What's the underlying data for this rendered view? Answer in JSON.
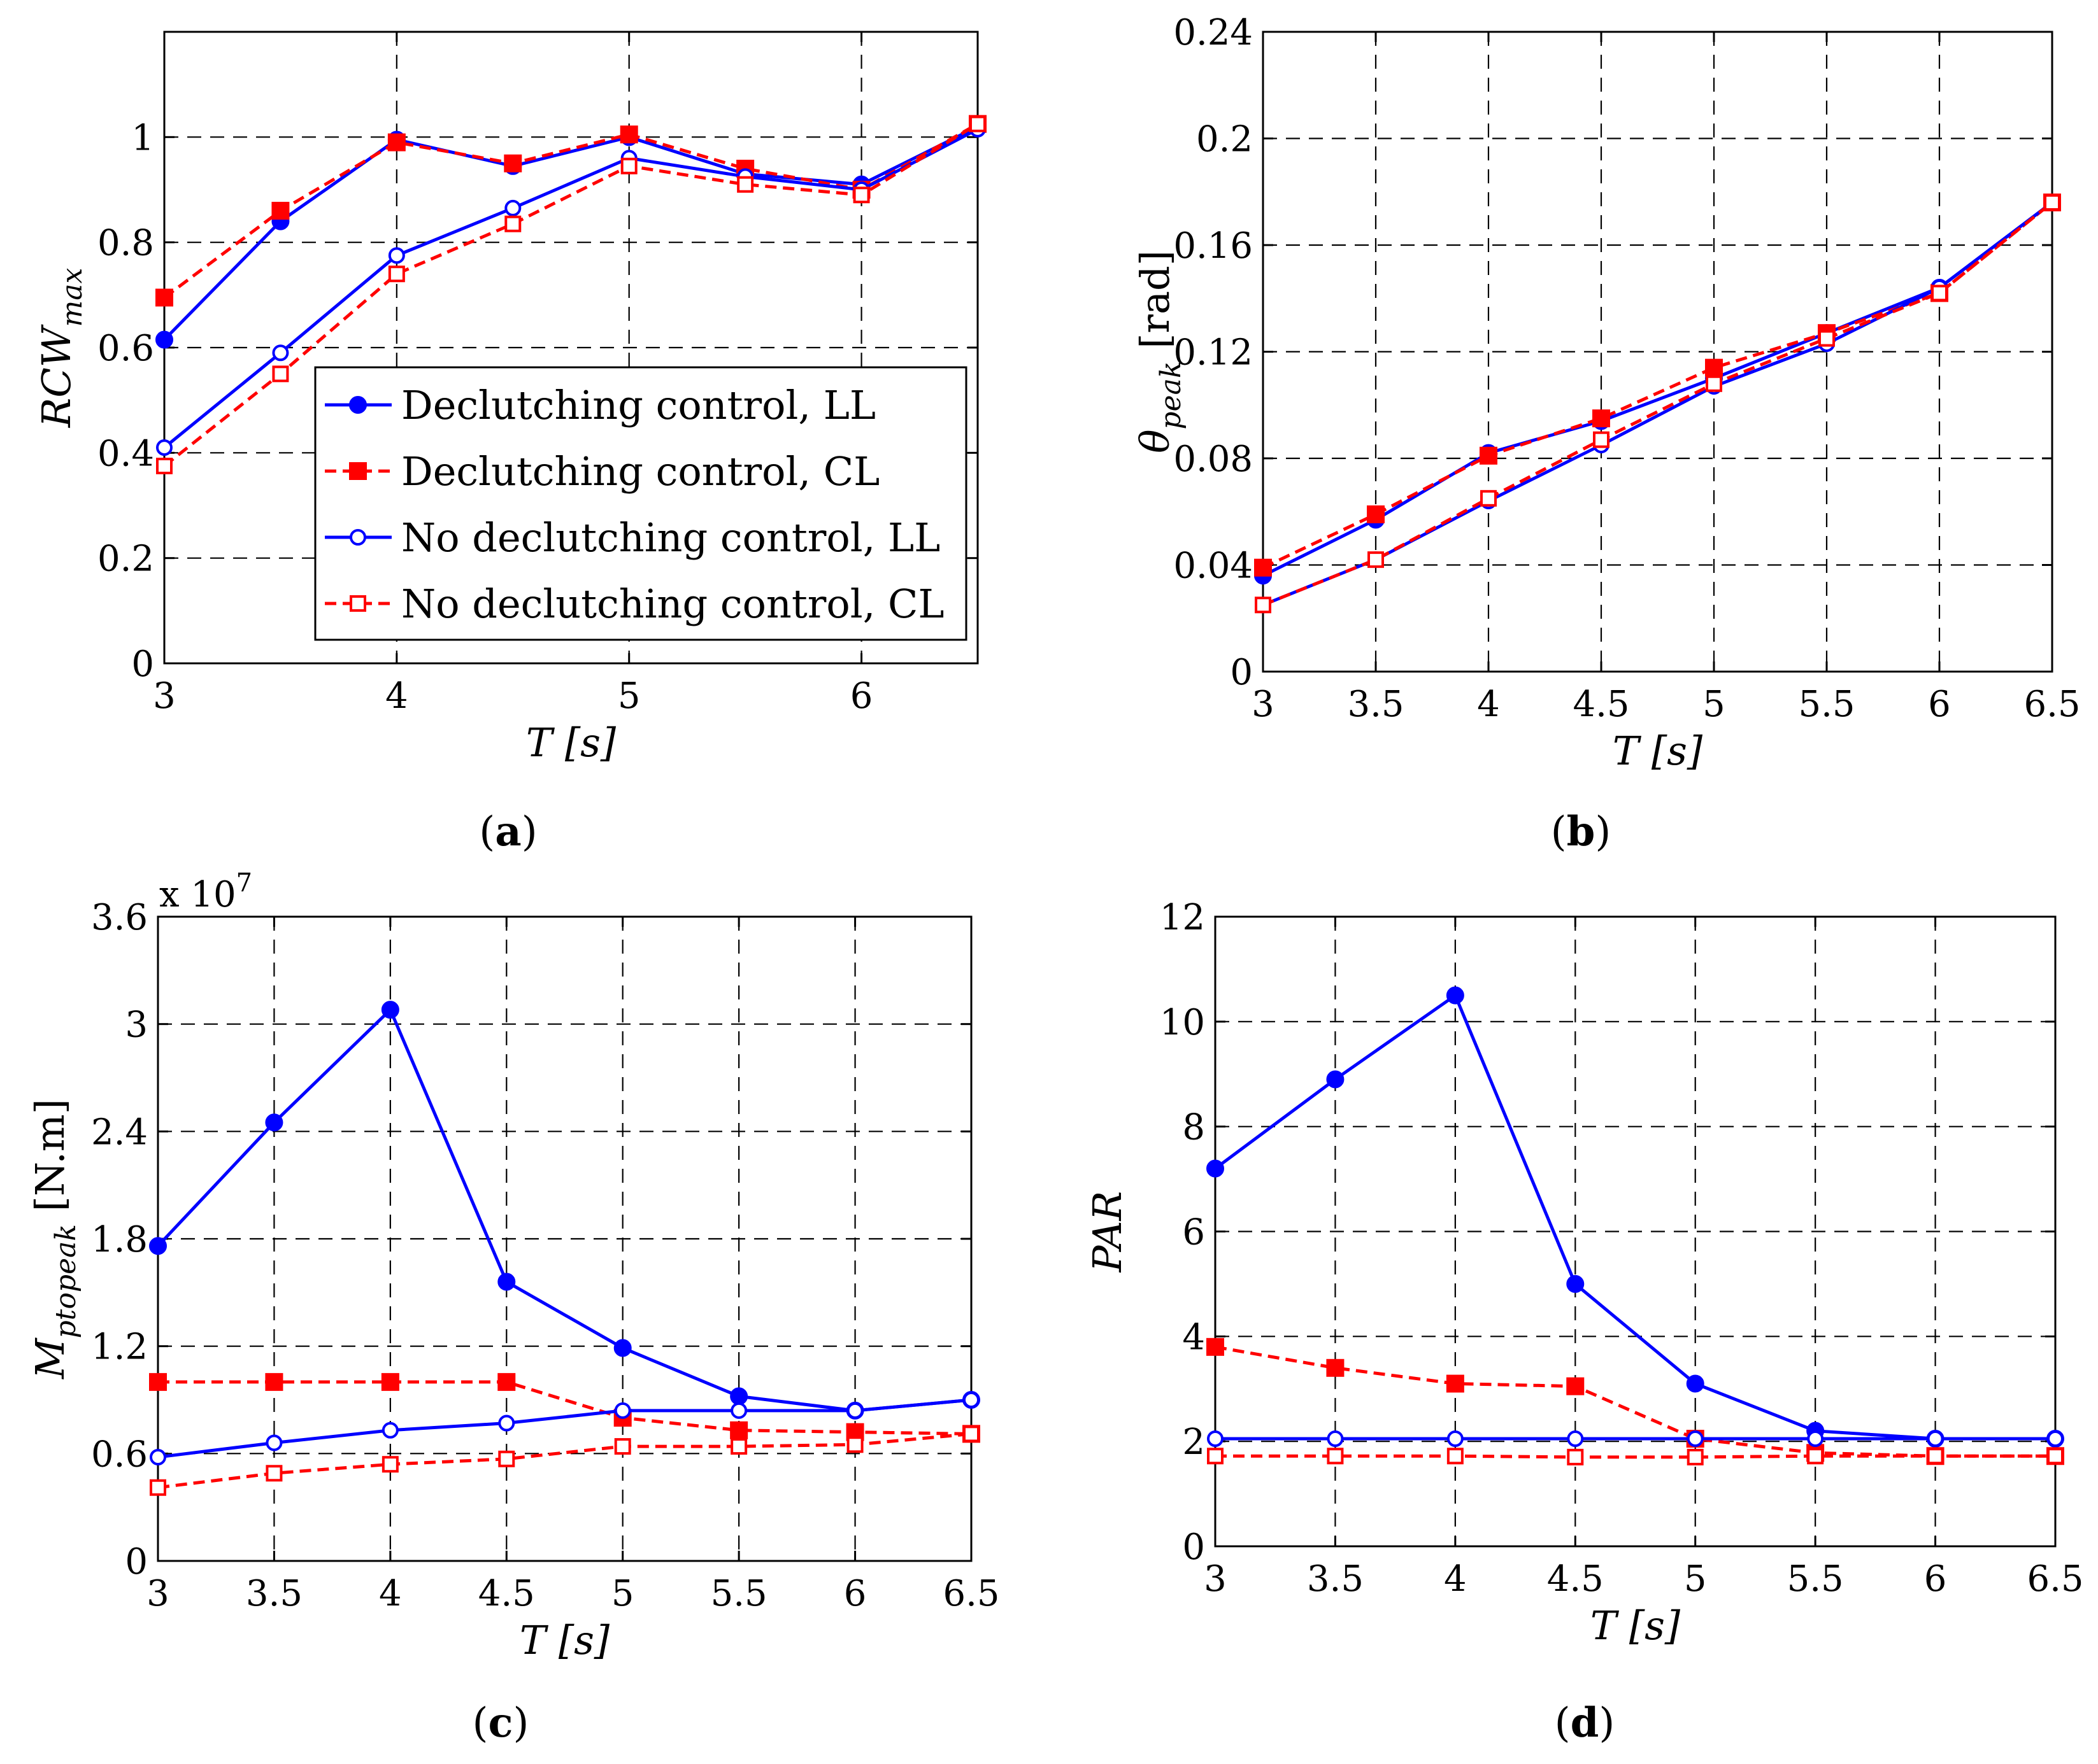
{
  "series_styles": [
    {
      "key": "dc_ll",
      "label": "Declutching control, LL",
      "color": "#0000ff",
      "dash": false,
      "marker": "circle",
      "filled": true
    },
    {
      "key": "dc_cl",
      "label": "Declutching control, CL",
      "color": "#ff0000",
      "dash": true,
      "marker": "square",
      "filled": true
    },
    {
      "key": "nodc_ll",
      "label": "No declutching control, LL",
      "color": "#0000ff",
      "dash": false,
      "marker": "circle",
      "filled": false
    },
    {
      "key": "nodc_cl",
      "label": "No declutching control, CL",
      "color": "#ff0000",
      "dash": true,
      "marker": "square",
      "filled": false
    }
  ],
  "chart_data": [
    {
      "id": "a",
      "type": "line",
      "caption": "(a)",
      "caption_letter": "a",
      "xlabel": "T [s]",
      "ylabel_main": "RCW",
      "ylabel_sub": "max",
      "ylabel_unit": "",
      "xlim": [
        3,
        6.5
      ],
      "ylim": [
        0,
        1.2
      ],
      "xticks": [
        3,
        4,
        5,
        6
      ],
      "xtick_labels": [
        "3",
        "4",
        "5",
        "6"
      ],
      "yticks": [
        0,
        0.2,
        0.4,
        0.6,
        0.8,
        1
      ],
      "ytick_labels": [
        "0",
        "0.2",
        "0.4",
        "0.6",
        "0.8",
        "1"
      ],
      "xgrid": [
        4,
        5,
        6
      ],
      "legend": "lower-right",
      "x": [
        3,
        3.5,
        4,
        4.5,
        5,
        5.5,
        6,
        6.5
      ],
      "series": [
        {
          "name": "Declutching control, LL",
          "style": "dc_ll",
          "values": [
            0.615,
            0.84,
            0.995,
            0.945,
            1.0,
            0.93,
            0.91,
            1.02
          ]
        },
        {
          "name": "Declutching control, CL",
          "style": "dc_cl",
          "values": [
            0.695,
            0.86,
            0.99,
            0.95,
            1.005,
            0.94,
            0.9,
            1.025
          ]
        },
        {
          "name": "No declutching control, LL",
          "style": "nodc_ll",
          "values": [
            0.41,
            0.59,
            0.775,
            0.865,
            0.96,
            0.925,
            0.9,
            1.015
          ]
        },
        {
          "name": "No declutching control, CL",
          "style": "nodc_cl",
          "values": [
            0.375,
            0.55,
            0.74,
            0.835,
            0.945,
            0.91,
            0.89,
            1.025
          ]
        }
      ]
    },
    {
      "id": "b",
      "type": "line",
      "caption": "(b)",
      "caption_letter": "b",
      "xlabel": "T [s]",
      "ylabel_main": "θ",
      "ylabel_sub": "peak",
      "ylabel_unit": " [rad]",
      "xlim": [
        3,
        6.5
      ],
      "ylim": [
        0,
        0.24
      ],
      "xticks": [
        3,
        3.5,
        4,
        4.5,
        5,
        5.5,
        6,
        6.5
      ],
      "xtick_labels": [
        "3",
        "3.5",
        "4",
        "4.5",
        "5",
        "5.5",
        "6",
        "6.5"
      ],
      "yticks": [
        0,
        0.04,
        0.08,
        0.12,
        0.16,
        0.2,
        0.24
      ],
      "ytick_labels": [
        "0",
        "0.04",
        "0.08",
        "0.12",
        "0.16",
        "0.2",
        "0.24"
      ],
      "xgrid": [
        3.5,
        4,
        4.5,
        5,
        5.5,
        6
      ],
      "legend": "none",
      "x": [
        3,
        3.5,
        4,
        4.5,
        5,
        5.5,
        6,
        6.5
      ],
      "series": [
        {
          "name": "Declutching control, LL",
          "style": "dc_ll",
          "values": [
            0.036,
            0.057,
            0.082,
            0.094,
            0.11,
            0.127,
            0.144,
            0.176
          ]
        },
        {
          "name": "Declutching control, CL",
          "style": "dc_cl",
          "values": [
            0.039,
            0.059,
            0.081,
            0.095,
            0.114,
            0.127,
            0.142,
            0.176
          ]
        },
        {
          "name": "No declutching control, LL",
          "style": "nodc_ll",
          "values": [
            0.025,
            0.042,
            0.064,
            0.085,
            0.107,
            0.123,
            0.144,
            0.176
          ]
        },
        {
          "name": "No declutching control, CL",
          "style": "nodc_cl",
          "values": [
            0.025,
            0.042,
            0.065,
            0.087,
            0.108,
            0.125,
            0.142,
            0.176
          ]
        }
      ]
    },
    {
      "id": "c",
      "type": "line",
      "caption": "(c)",
      "caption_letter": "c",
      "xlabel": "T [s]",
      "ylabel_main": "M",
      "ylabel_sub": "ptopeak",
      "ylabel_unit": " [N.m]",
      "exponent_label": "x 10",
      "exponent_power": "7",
      "xlim": [
        3,
        6.5
      ],
      "ylim": [
        0,
        3.6
      ],
      "xticks": [
        3,
        3.5,
        4,
        4.5,
        5,
        5.5,
        6,
        6.5
      ],
      "xtick_labels": [
        "3",
        "3.5",
        "4",
        "4.5",
        "5",
        "5.5",
        "6",
        "6.5"
      ],
      "yticks": [
        0,
        0.6,
        1.2,
        1.8,
        2.4,
        3,
        3.6
      ],
      "ytick_labels": [
        "0",
        "0.6",
        "1.2",
        "1.8",
        "2.4",
        "3",
        "3.6"
      ],
      "xgrid": [
        3.5,
        4,
        4.5,
        5,
        5.5,
        6
      ],
      "legend": "none",
      "x": [
        3,
        3.5,
        4,
        4.5,
        5,
        5.5,
        6,
        6.5
      ],
      "series": [
        {
          "name": "Declutching control, LL",
          "style": "dc_ll",
          "values": [
            1.76,
            2.45,
            3.08,
            1.56,
            1.19,
            0.92,
            0.84,
            0.9
          ]
        },
        {
          "name": "Declutching control, CL",
          "style": "dc_cl",
          "values": [
            1.0,
            1.0,
            1.0,
            1.0,
            0.8,
            0.73,
            0.72,
            0.71
          ]
        },
        {
          "name": "No declutching control, LL",
          "style": "nodc_ll",
          "values": [
            0.58,
            0.66,
            0.73,
            0.77,
            0.84,
            0.84,
            0.84,
            0.9
          ]
        },
        {
          "name": "No declutching control, CL",
          "style": "nodc_cl",
          "values": [
            0.41,
            0.49,
            0.54,
            0.57,
            0.64,
            0.64,
            0.65,
            0.71
          ]
        }
      ]
    },
    {
      "id": "d",
      "type": "line",
      "caption": "(d)",
      "caption_letter": "d",
      "xlabel": "T [s]",
      "ylabel_main": "PAR",
      "ylabel_sub": "",
      "ylabel_unit": "",
      "xlim": [
        3,
        6.5
      ],
      "ylim": [
        0,
        12
      ],
      "xticks": [
        3,
        3.5,
        4,
        4.5,
        5,
        5.5,
        6,
        6.5
      ],
      "xtick_labels": [
        "3",
        "3.5",
        "4",
        "4.5",
        "5",
        "5.5",
        "6",
        "6.5"
      ],
      "yticks": [
        0,
        2,
        4,
        6,
        8,
        10,
        12
      ],
      "ytick_labels": [
        "0",
        "2",
        "4",
        "6",
        "8",
        "10",
        "12"
      ],
      "xgrid": [
        3.5,
        4,
        4.5,
        5,
        5.5,
        6
      ],
      "legend": "none",
      "x": [
        3,
        3.5,
        4,
        4.5,
        5,
        5.5,
        6,
        6.5
      ],
      "series": [
        {
          "name": "Declutching control, LL",
          "style": "dc_ll",
          "values": [
            7.2,
            8.9,
            10.5,
            5.0,
            3.1,
            2.2,
            2.05,
            2.05
          ]
        },
        {
          "name": "Declutching control, CL",
          "style": "dc_cl",
          "values": [
            3.8,
            3.4,
            3.1,
            3.05,
            2.05,
            1.78,
            1.72,
            1.72
          ]
        },
        {
          "name": "No declutching control, LL",
          "style": "nodc_ll",
          "values": [
            2.05,
            2.05,
            2.05,
            2.05,
            2.05,
            2.05,
            2.05,
            2.05
          ]
        },
        {
          "name": "No declutching control, CL",
          "style": "nodc_cl",
          "values": [
            1.72,
            1.72,
            1.72,
            1.7,
            1.7,
            1.72,
            1.72,
            1.72
          ]
        }
      ]
    }
  ]
}
